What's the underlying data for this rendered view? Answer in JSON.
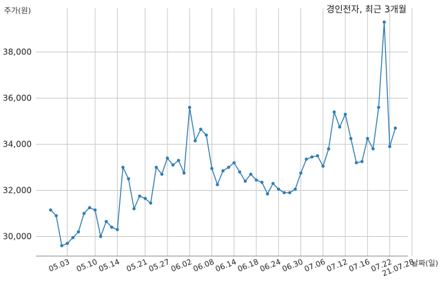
{
  "chart_data": {
    "type": "line",
    "title": "경인전자, 최근 3개월",
    "ylabel": "주가(원)",
    "xlabel": "날짜(일)",
    "ylim": [
      29150,
      39900
    ],
    "yticks": [
      30000,
      32000,
      34000,
      36000,
      38000
    ],
    "ytick_labels": [
      "30,000",
      "32,000",
      "34,000",
      "36,000",
      "38,000"
    ],
    "xtick_labels": [
      "05.03",
      "05.10",
      "05.14",
      "05.21",
      "05.27",
      "06.02",
      "06.08",
      "06.14",
      "06.18",
      "06.24",
      "06.30",
      "07.06",
      "07.12",
      "07.16",
      "07.22",
      "21.07.28"
    ],
    "xtick_positions": [
      3,
      8,
      12,
      17,
      21,
      25,
      29,
      33,
      37,
      41,
      45,
      49,
      53,
      57,
      61,
      65
    ],
    "grid": true,
    "color": "#2e7db3",
    "series": [
      {
        "values": [
          31150,
          30900,
          29600,
          29700,
          29950,
          30200,
          31000,
          31250,
          31150,
          30000,
          30650,
          30400,
          30300,
          33000,
          32500,
          31200,
          31750,
          31650,
          31450,
          33000,
          32700,
          33400,
          33100,
          33300,
          32750,
          35600,
          34150,
          34650,
          34400,
          32950,
          32250,
          32850,
          33000,
          33200,
          32800,
          32400,
          32700,
          32450,
          32350,
          31850,
          32300,
          32050,
          31900,
          31900,
          32050,
          32750,
          33350,
          33450,
          33500,
          33050,
          33800,
          35400,
          34750,
          35300,
          34250,
          33200,
          33250,
          34250,
          33800,
          35600,
          39300,
          33900,
          34700
        ]
      }
    ]
  }
}
